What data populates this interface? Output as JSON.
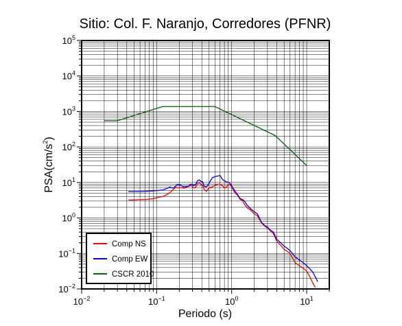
{
  "chart_data": {
    "type": "line",
    "title": "Sitio: Col. F. Naranjo, Corredores (PFNR)",
    "xlabel": "Periodo (s)",
    "ylabel": {
      "base": "PSA(cm/s",
      "sup": "2",
      "close": ")"
    },
    "x_scale": "log",
    "y_scale": "log",
    "xlim": [
      0.01,
      20
    ],
    "ylim": [
      0.01,
      100000
    ],
    "grid": true,
    "legend_position": "bottom-left",
    "x_ticks": [
      {
        "base": "10",
        "exp": "−2",
        "value": 0.01
      },
      {
        "base": "10",
        "exp": "−1",
        "value": 0.1
      },
      {
        "base": "10",
        "exp": "0",
        "value": 1
      },
      {
        "base": "10",
        "exp": "1",
        "value": 10
      }
    ],
    "y_ticks": [
      {
        "base": "10",
        "exp": "−2",
        "value": 0.01
      },
      {
        "base": "10",
        "exp": "−1",
        "value": 0.1
      },
      {
        "base": "10",
        "exp": "0",
        "value": 1
      },
      {
        "base": "10",
        "exp": "1",
        "value": 10
      },
      {
        "base": "10",
        "exp": "2",
        "value": 100
      },
      {
        "base": "10",
        "exp": "3",
        "value": 1000
      },
      {
        "base": "10",
        "exp": "4",
        "value": 10000
      },
      {
        "base": "10",
        "exp": "5",
        "value": 100000
      }
    ],
    "series": [
      {
        "name": "Comp NS",
        "color": "#ff0000",
        "points": [
          [
            0.042,
            3.2
          ],
          [
            0.05,
            3.2
          ],
          [
            0.06,
            3.3
          ],
          [
            0.07,
            3.3
          ],
          [
            0.08,
            3.4
          ],
          [
            0.09,
            3.5
          ],
          [
            0.1,
            3.7
          ],
          [
            0.11,
            3.9
          ],
          [
            0.12,
            4.0
          ],
          [
            0.13,
            4.3
          ],
          [
            0.14,
            4.7
          ],
          [
            0.15,
            5.2
          ],
          [
            0.16,
            5.8
          ],
          [
            0.17,
            6.7
          ],
          [
            0.18,
            7.3
          ],
          [
            0.19,
            7.0
          ],
          [
            0.2,
            7.3
          ],
          [
            0.21,
            7.0
          ],
          [
            0.22,
            7.3
          ],
          [
            0.23,
            6.8
          ],
          [
            0.25,
            7.4
          ],
          [
            0.27,
            7.8
          ],
          [
            0.29,
            8.3
          ],
          [
            0.31,
            7.0
          ],
          [
            0.33,
            7.3
          ],
          [
            0.35,
            9.3
          ],
          [
            0.37,
            10.2
          ],
          [
            0.39,
            8.6
          ],
          [
            0.41,
            8.4
          ],
          [
            0.43,
            6.4
          ],
          [
            0.46,
            5.6
          ],
          [
            0.5,
            7.1
          ],
          [
            0.55,
            7.4
          ],
          [
            0.6,
            8.4
          ],
          [
            0.65,
            8.9
          ],
          [
            0.7,
            9.0
          ],
          [
            0.75,
            8.2
          ],
          [
            0.8,
            6.9
          ],
          [
            0.85,
            7.4
          ],
          [
            0.9,
            8.7
          ],
          [
            0.95,
            8.9
          ],
          [
            1.0,
            7.4
          ],
          [
            1.1,
            5.2
          ],
          [
            1.2,
            4.3
          ],
          [
            1.3,
            3.3
          ],
          [
            1.4,
            3.1
          ],
          [
            1.5,
            2.3
          ],
          [
            1.6,
            1.95
          ],
          [
            1.8,
            1.65
          ],
          [
            2.0,
            1.3
          ],
          [
            2.2,
            1.15
          ],
          [
            2.5,
            0.72
          ],
          [
            2.8,
            0.57
          ],
          [
            3.0,
            0.52
          ],
          [
            3.3,
            0.43
          ],
          [
            3.6,
            0.36
          ],
          [
            4.0,
            0.22
          ],
          [
            4.5,
            0.17
          ],
          [
            5.0,
            0.13
          ],
          [
            5.5,
            0.115
          ],
          [
            6.0,
            0.1
          ],
          [
            7.0,
            0.055
          ],
          [
            8.0,
            0.045
          ],
          [
            9.0,
            0.038
          ],
          [
            10.0,
            0.032
          ],
          [
            11.0,
            0.022
          ],
          [
            12.0,
            0.015
          ],
          [
            13.0,
            0.011
          ]
        ]
      },
      {
        "name": "Comp EW",
        "color": "#0000ff",
        "points": [
          [
            0.042,
            5.5
          ],
          [
            0.05,
            5.5
          ],
          [
            0.06,
            5.5
          ],
          [
            0.07,
            5.6
          ],
          [
            0.08,
            5.7
          ],
          [
            0.09,
            5.8
          ],
          [
            0.1,
            5.9
          ],
          [
            0.11,
            6.0
          ],
          [
            0.12,
            6.1
          ],
          [
            0.13,
            6.5
          ],
          [
            0.14,
            7.0
          ],
          [
            0.15,
            7.4
          ],
          [
            0.16,
            7.0
          ],
          [
            0.17,
            7.1
          ],
          [
            0.18,
            8.0
          ],
          [
            0.19,
            8.9
          ],
          [
            0.2,
            8.5
          ],
          [
            0.21,
            8.4
          ],
          [
            0.22,
            7.9
          ],
          [
            0.23,
            7.5
          ],
          [
            0.25,
            7.7
          ],
          [
            0.27,
            8.2
          ],
          [
            0.29,
            9.0
          ],
          [
            0.31,
            8.3
          ],
          [
            0.33,
            8.6
          ],
          [
            0.35,
            11.2
          ],
          [
            0.37,
            11.8
          ],
          [
            0.39,
            10.7
          ],
          [
            0.41,
            10.5
          ],
          [
            0.43,
            7.7
          ],
          [
            0.46,
            7.5
          ],
          [
            0.5,
            9.5
          ],
          [
            0.55,
            13.5
          ],
          [
            0.6,
            14.7
          ],
          [
            0.65,
            15.2
          ],
          [
            0.7,
            15.8
          ],
          [
            0.75,
            12.3
          ],
          [
            0.8,
            11.1
          ],
          [
            0.85,
            10.4
          ],
          [
            0.9,
            10.2
          ],
          [
            0.95,
            9.5
          ],
          [
            1.0,
            8.0
          ],
          [
            1.1,
            5.8
          ],
          [
            1.2,
            4.5
          ],
          [
            1.3,
            3.5
          ],
          [
            1.4,
            3.3
          ],
          [
            1.5,
            2.9
          ],
          [
            1.6,
            2.3
          ],
          [
            1.8,
            1.8
          ],
          [
            2.0,
            1.5
          ],
          [
            2.2,
            1.3
          ],
          [
            2.5,
            0.75
          ],
          [
            2.8,
            0.6
          ],
          [
            3.0,
            0.55
          ],
          [
            3.3,
            0.45
          ],
          [
            3.6,
            0.4
          ],
          [
            4.0,
            0.25
          ],
          [
            4.5,
            0.2
          ],
          [
            5.0,
            0.16
          ],
          [
            5.5,
            0.14
          ],
          [
            6.0,
            0.12
          ],
          [
            7.0,
            0.08
          ],
          [
            8.0,
            0.065
          ],
          [
            9.0,
            0.055
          ],
          [
            10.0,
            0.045
          ],
          [
            11.0,
            0.037
          ],
          [
            12.0,
            0.03
          ],
          [
            13.0,
            0.022
          ],
          [
            14.0,
            0.016
          ]
        ]
      },
      {
        "name": "CSCR 2010",
        "color": "#006400",
        "points": [
          [
            0.02,
            550
          ],
          [
            0.03,
            550
          ],
          [
            0.12,
            1375
          ],
          [
            0.6,
            1375
          ],
          [
            3.8,
            210
          ],
          [
            10.0,
            30
          ]
        ]
      }
    ]
  }
}
